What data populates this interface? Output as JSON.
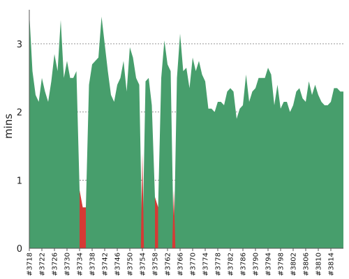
{
  "chart_data": {
    "type": "area",
    "ylabel": "mins",
    "xlabel": "",
    "ylim": [
      0,
      3.6
    ],
    "yticks": [
      "0",
      "1",
      "2",
      "3"
    ],
    "grid": "horizontal-dashed",
    "colors": {
      "pass": "#479e6c",
      "fail": "#d53a35",
      "grid": "#777777",
      "axis": "#555555"
    },
    "x_tick_labels": [
      "#3718",
      "#3722",
      "#3726",
      "#3730",
      "#3734",
      "#3738",
      "#3742",
      "#3746",
      "#3750",
      "#3754",
      "#3758",
      "#3762",
      "#3766",
      "#3770",
      "#3774",
      "#3778",
      "#3782",
      "#3786",
      "#3790",
      "#3794",
      "#3798",
      "#3802",
      "#3806",
      "#3810",
      "#3814"
    ],
    "x": [
      "#3718",
      "#3719",
      "#3720",
      "#3721",
      "#3722",
      "#3723",
      "#3724",
      "#3725",
      "#3726",
      "#3727",
      "#3728",
      "#3729",
      "#3730",
      "#3731",
      "#3732",
      "#3733",
      "#3734",
      "#3735",
      "#3736",
      "#3737",
      "#3738",
      "#3739",
      "#3740",
      "#3741",
      "#3742",
      "#3743",
      "#3744",
      "#3745",
      "#3746",
      "#3747",
      "#3748",
      "#3749",
      "#3750",
      "#3751",
      "#3752",
      "#3753",
      "#3754",
      "#3755",
      "#3756",
      "#3757",
      "#3758",
      "#3759",
      "#3760",
      "#3761",
      "#3762",
      "#3763",
      "#3764",
      "#3765",
      "#3766",
      "#3767",
      "#3768",
      "#3769",
      "#3770",
      "#3771",
      "#3772",
      "#3773",
      "#3774",
      "#3775",
      "#3776",
      "#3777",
      "#3778",
      "#3779",
      "#3780",
      "#3781",
      "#3782",
      "#3783",
      "#3784",
      "#3785",
      "#3786",
      "#3787",
      "#3788",
      "#3789",
      "#3790",
      "#3791",
      "#3792",
      "#3793",
      "#3794",
      "#3795",
      "#3796",
      "#3797",
      "#3798",
      "#3799",
      "#3800",
      "#3801",
      "#3802",
      "#3803",
      "#3804",
      "#3805",
      "#3806",
      "#3807",
      "#3808",
      "#3809",
      "#3810",
      "#3811",
      "#3812",
      "#3813",
      "#3814",
      "#3815",
      "#3816",
      "#3817",
      "#3818"
    ],
    "series": [
      {
        "status": "pass",
        "values": [
          3.45,
          2.6,
          2.25,
          2.15,
          2.5,
          2.3,
          2.15,
          2.45,
          2.85,
          2.6,
          3.35,
          2.5,
          2.75,
          2.5,
          2.5,
          2.6,
          0.85,
          0.6,
          0.6,
          2.4,
          2.7,
          2.75,
          2.8,
          3.4,
          3.0,
          2.6,
          2.25,
          2.15,
          2.4,
          2.5,
          2.75,
          2.3,
          2.95,
          2.8,
          2.5,
          2.4,
          0.0,
          2.45,
          2.5,
          2.1,
          0.75,
          0.6,
          2.5,
          3.05,
          2.7,
          2.6,
          0.0,
          2.5,
          3.15,
          2.6,
          2.65,
          2.35,
          2.8,
          2.6,
          2.75,
          2.55,
          2.45,
          2.05,
          2.05,
          2.0,
          2.15,
          2.15,
          2.1,
          2.3,
          2.35,
          2.3,
          1.9,
          2.05,
          2.1,
          2.55,
          2.15,
          2.3,
          2.35,
          2.5,
          2.5,
          2.5,
          2.65,
          2.55,
          2.1,
          2.4,
          2.05,
          2.15,
          2.15,
          2.0,
          2.1,
          2.3,
          2.35,
          2.2,
          2.15,
          2.45,
          2.25,
          2.4,
          2.25,
          2.15,
          2.1,
          2.1,
          2.15,
          2.35,
          2.35,
          2.3,
          2.3
        ]
      },
      {
        "status": "fail",
        "values": [
          null,
          null,
          null,
          null,
          null,
          null,
          null,
          null,
          null,
          null,
          null,
          null,
          null,
          null,
          null,
          null,
          0.85,
          0.6,
          0.6,
          null,
          null,
          null,
          null,
          null,
          null,
          null,
          null,
          null,
          null,
          null,
          null,
          null,
          null,
          null,
          null,
          null,
          1.4,
          null,
          null,
          null,
          0.75,
          0.6,
          null,
          null,
          null,
          null,
          0.85,
          null,
          null,
          null,
          null,
          null,
          null,
          null,
          null,
          null,
          null,
          null,
          null,
          null,
          null,
          null,
          null,
          null,
          null,
          null,
          null,
          null,
          null,
          null,
          null,
          null,
          null,
          null,
          null,
          null,
          null,
          null,
          null,
          null,
          null,
          null,
          null,
          null,
          null,
          null,
          null,
          null,
          null,
          null,
          null,
          null,
          null,
          null,
          null,
          null,
          null,
          null,
          null,
          null,
          null
        ]
      }
    ]
  }
}
